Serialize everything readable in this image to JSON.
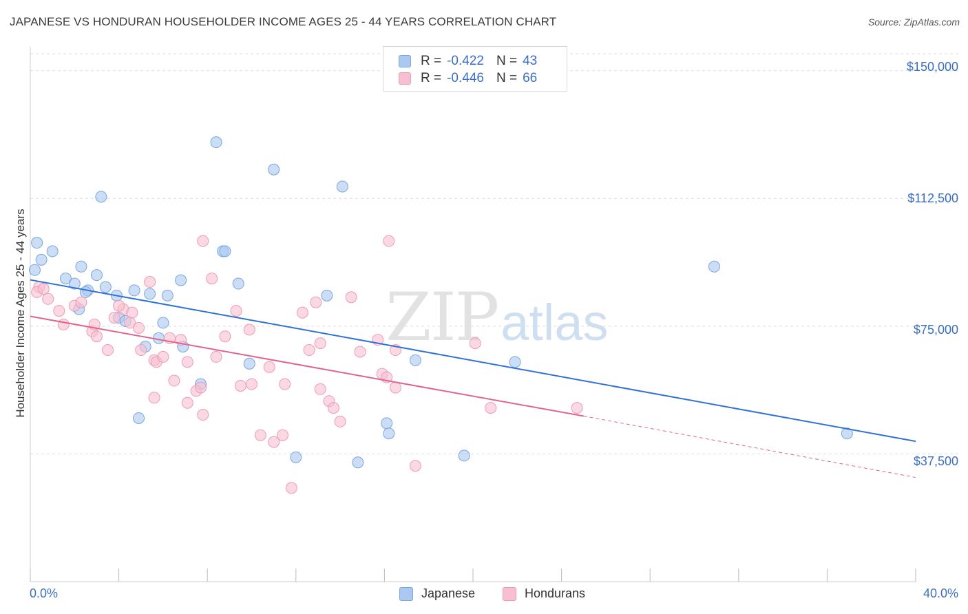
{
  "title": "JAPANESE VS HONDURAN HOUSEHOLDER INCOME AGES 25 - 44 YEARS CORRELATION CHART",
  "source": "Source: ZipAtlas.com",
  "watermark": {
    "zip": "ZIP",
    "atlas": "atlas"
  },
  "colors": {
    "japanese_fill": "#aac8f0",
    "japanese_stroke": "#7aa5e0",
    "japanese_line": "#2f72d4",
    "honduran_fill": "#f7bfd0",
    "honduran_stroke": "#ee9ab5",
    "honduran_line": "#e0648e",
    "grid": "#dddddd",
    "tick_text": "#3b6fc4"
  },
  "legend": {
    "r_label": "R =",
    "n_label": "N =",
    "rows": [
      {
        "series": "Japanese",
        "r": "-0.422",
        "n": "43"
      },
      {
        "series": "Hondurans",
        "r": "-0.446",
        "n": "66"
      }
    ]
  },
  "chart_data": {
    "type": "scatter",
    "title": "JAPANESE VS HONDURAN HOUSEHOLDER INCOME AGES 25 - 44 YEARS CORRELATION CHART",
    "xlabel": "",
    "ylabel": "Householder Income Ages 25 - 44 years",
    "xlim": [
      0,
      40
    ],
    "ylim": [
      0,
      155000
    ],
    "x_tick_labels": [
      "0.0%",
      "40.0%"
    ],
    "y_ticks": [
      37500,
      75000,
      112500,
      150000
    ],
    "y_tick_labels": [
      "$37,500",
      "$75,000",
      "$112,500",
      "$150,000"
    ],
    "grid": true,
    "legend_position": "top-center",
    "series": [
      {
        "name": "Japanese",
        "r": -0.422,
        "n": 43,
        "trend": {
          "x": [
            0,
            40
          ],
          "y": [
            88600,
            41200
          ]
        },
        "points": [
          [
            0.3,
            99500
          ],
          [
            0.5,
            94500
          ],
          [
            1.0,
            97000
          ],
          [
            1.6,
            89000
          ],
          [
            2.0,
            87500
          ],
          [
            2.3,
            92500
          ],
          [
            2.2,
            80000
          ],
          [
            2.6,
            85500
          ],
          [
            2.5,
            85000
          ],
          [
            3.0,
            90000
          ],
          [
            3.4,
            86500
          ],
          [
            3.2,
            113000
          ],
          [
            3.9,
            84000
          ],
          [
            4.0,
            77500
          ],
          [
            4.3,
            76500
          ],
          [
            4.7,
            85500
          ],
          [
            5.4,
            84500
          ],
          [
            4.9,
            48000
          ],
          [
            5.2,
            69000
          ],
          [
            5.8,
            71500
          ],
          [
            6.2,
            84000
          ],
          [
            6.0,
            76000
          ],
          [
            6.8,
            88500
          ],
          [
            6.9,
            69000
          ],
          [
            7.7,
            58000
          ],
          [
            8.4,
            129000
          ],
          [
            8.7,
            97000
          ],
          [
            8.8,
            97000
          ],
          [
            9.4,
            87500
          ],
          [
            9.9,
            64000
          ],
          [
            11.0,
            121000
          ],
          [
            13.4,
            84000
          ],
          [
            14.1,
            116000
          ],
          [
            12.0,
            36500
          ],
          [
            14.8,
            35000
          ],
          [
            16.1,
            46500
          ],
          [
            16.2,
            43500
          ],
          [
            17.4,
            65000
          ],
          [
            19.6,
            37000
          ],
          [
            21.9,
            64500
          ],
          [
            30.9,
            92500
          ],
          [
            36.9,
            43500
          ],
          [
            0.2,
            91500
          ]
        ]
      },
      {
        "name": "Hondurans",
        "r": -0.446,
        "n": 66,
        "trend": {
          "x": [
            0,
            25,
            40
          ],
          "y": [
            77900,
            48600,
            30600
          ],
          "solid_until_x": 25
        },
        "points": [
          [
            0.4,
            86500
          ],
          [
            0.8,
            83000
          ],
          [
            1.3,
            79500
          ],
          [
            1.5,
            75500
          ],
          [
            2.0,
            81000
          ],
          [
            2.3,
            82000
          ],
          [
            2.8,
            73500
          ],
          [
            2.9,
            75500
          ],
          [
            3.0,
            72000
          ],
          [
            3.5,
            68000
          ],
          [
            3.8,
            77500
          ],
          [
            4.2,
            80000
          ],
          [
            4.0,
            81000
          ],
          [
            4.6,
            79000
          ],
          [
            4.5,
            76000
          ],
          [
            4.9,
            74500
          ],
          [
            5.4,
            88000
          ],
          [
            5.0,
            68000
          ],
          [
            5.6,
            65000
          ],
          [
            5.7,
            64500
          ],
          [
            6.0,
            66000
          ],
          [
            5.6,
            54000
          ],
          [
            6.3,
            71500
          ],
          [
            6.5,
            59000
          ],
          [
            6.8,
            71000
          ],
          [
            7.1,
            64500
          ],
          [
            7.1,
            52500
          ],
          [
            7.5,
            56000
          ],
          [
            7.7,
            57000
          ],
          [
            7.8,
            100000
          ],
          [
            7.8,
            49000
          ],
          [
            8.2,
            89000
          ],
          [
            8.4,
            66000
          ],
          [
            8.8,
            72000
          ],
          [
            9.3,
            79500
          ],
          [
            9.9,
            74000
          ],
          [
            9.5,
            57500
          ],
          [
            10.0,
            58000
          ],
          [
            10.4,
            43000
          ],
          [
            10.8,
            63000
          ],
          [
            11.0,
            41000
          ],
          [
            11.4,
            43000
          ],
          [
            11.5,
            58000
          ],
          [
            11.8,
            27500
          ],
          [
            12.3,
            79000
          ],
          [
            12.6,
            68000
          ],
          [
            12.9,
            82000
          ],
          [
            13.1,
            70000
          ],
          [
            13.1,
            56500
          ],
          [
            13.5,
            53000
          ],
          [
            13.7,
            51000
          ],
          [
            14.0,
            47000
          ],
          [
            14.5,
            83500
          ],
          [
            14.9,
            67500
          ],
          [
            15.7,
            71000
          ],
          [
            15.9,
            61000
          ],
          [
            16.1,
            60000
          ],
          [
            16.5,
            57000
          ],
          [
            16.5,
            68000
          ],
          [
            16.2,
            100000
          ],
          [
            17.4,
            34000
          ],
          [
            20.1,
            70000
          ],
          [
            20.8,
            51000
          ],
          [
            24.7,
            51000
          ],
          [
            0.3,
            85000
          ],
          [
            0.6,
            86000
          ]
        ]
      }
    ]
  }
}
